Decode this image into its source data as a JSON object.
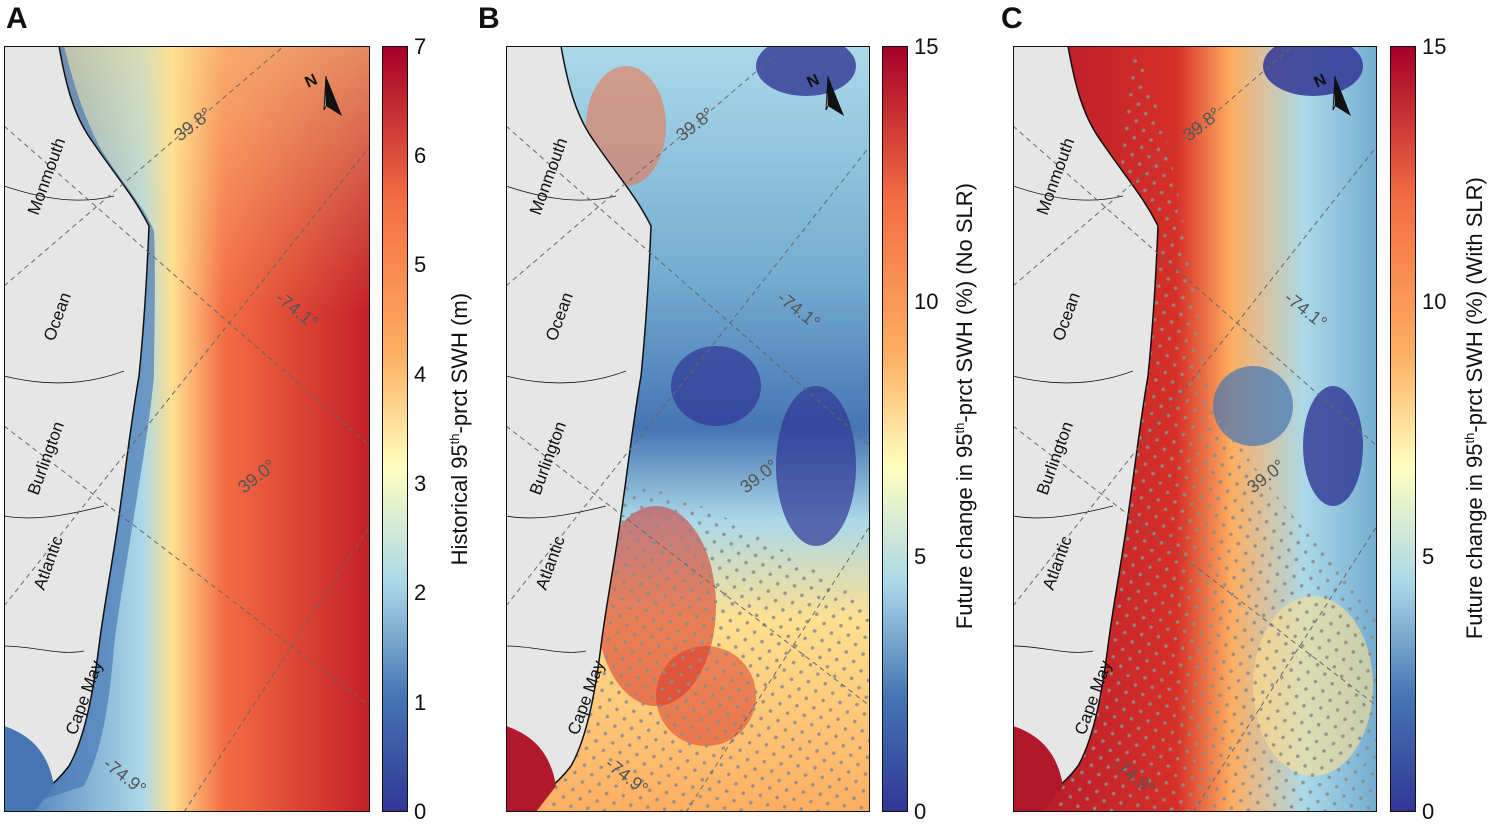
{
  "panels": [
    {
      "letter": "A",
      "colorbar_label_main": "Historical 95",
      "colorbar_label_sup": "th",
      "colorbar_label_rest": "-prct SWH (m)",
      "ticks": [
        "0",
        "1",
        "2",
        "3",
        "4",
        "5",
        "6",
        "7"
      ],
      "stippled": false
    },
    {
      "letter": "B",
      "colorbar_label_main": "Future change in 95",
      "colorbar_label_sup": "th",
      "colorbar_label_rest": "-prct SWH (%) (No SLR)",
      "ticks": [
        "0",
        "5",
        "10",
        "15"
      ],
      "stippled": true
    },
    {
      "letter": "C",
      "colorbar_label_main": "Future change in 95",
      "colorbar_label_sup": "th",
      "colorbar_label_rest": "-prct SWH (%) (With SLR)",
      "ticks": [
        "0",
        "5",
        "10",
        "15"
      ],
      "stippled": true
    }
  ],
  "counties": [
    "Monmouth",
    "Ocean",
    "Burlington",
    "Atlantic",
    "Cape May"
  ],
  "gridlines": {
    "lat_labels": [
      "39.8°",
      "39.0°"
    ],
    "lon_labels": [
      "-74.1°",
      "-74.9°"
    ]
  },
  "north_arrow": "N",
  "colors": {
    "land": "#e6e6e6",
    "coast": "#111111",
    "low": "#313695",
    "mid": "#ffffbf",
    "high": "#a50026",
    "stipple": "#8c8c8c"
  }
}
